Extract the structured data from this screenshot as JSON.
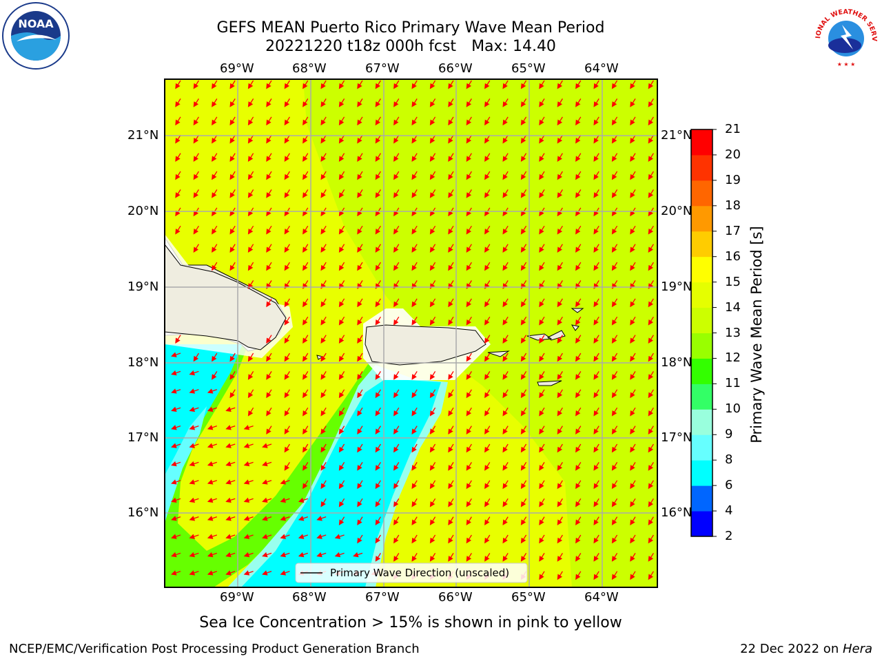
{
  "title": {
    "line1": "GEFS MEAN Puerto Rico Primary Wave Mean Period",
    "line2_date": "20221220 t18z 000h fcst",
    "line2_max": "Max: 14.40"
  },
  "map": {
    "lon_labels": [
      "69°W",
      "68°W",
      "67°W",
      "66°W",
      "65°W",
      "64°W"
    ],
    "lat_labels": [
      "21°N",
      "20°N",
      "19°N",
      "18°N",
      "17°N",
      "16°N"
    ],
    "legend_label": "Primary Wave Direction (unscaled)",
    "colors": {
      "yellow": "#ffff00",
      "yellow_green": "#ccff00",
      "light_green": "#99ff00",
      "green": "#33ff00",
      "pale_cyan": "#99ffee",
      "light_cyan": "#66ffff",
      "cyan": "#00ffff",
      "land": "#efede0",
      "arrow": "#ff0000"
    }
  },
  "colorbar": {
    "title": "Primary Wave Mean Period [s]",
    "ticks": [
      "2",
      "4",
      "6",
      "8",
      "9",
      "10",
      "11",
      "12",
      "13",
      "14",
      "15",
      "16",
      "17",
      "18",
      "19",
      "20",
      "21"
    ],
    "colors": [
      "#0000ff",
      "#0066ff",
      "#00ffff",
      "#66ffff",
      "#99ffdd",
      "#33ff66",
      "#33ff00",
      "#99ff00",
      "#ccff00",
      "#e5ff00",
      "#ffff00",
      "#ffcc00",
      "#ff9900",
      "#ff6600",
      "#ff3300",
      "#ff0000"
    ]
  },
  "subnote": "Sea Ice Concentration > 15% is shown in pink to yellow",
  "footer": {
    "left": "NCEP/EMC/Verification Post Processing Product Generation Branch",
    "right_prefix": "22 Dec 2022 on ",
    "right_machine": "Hera"
  },
  "logos": {
    "left": "NOAA",
    "right": "NATIONAL WEATHER SERVICE"
  }
}
